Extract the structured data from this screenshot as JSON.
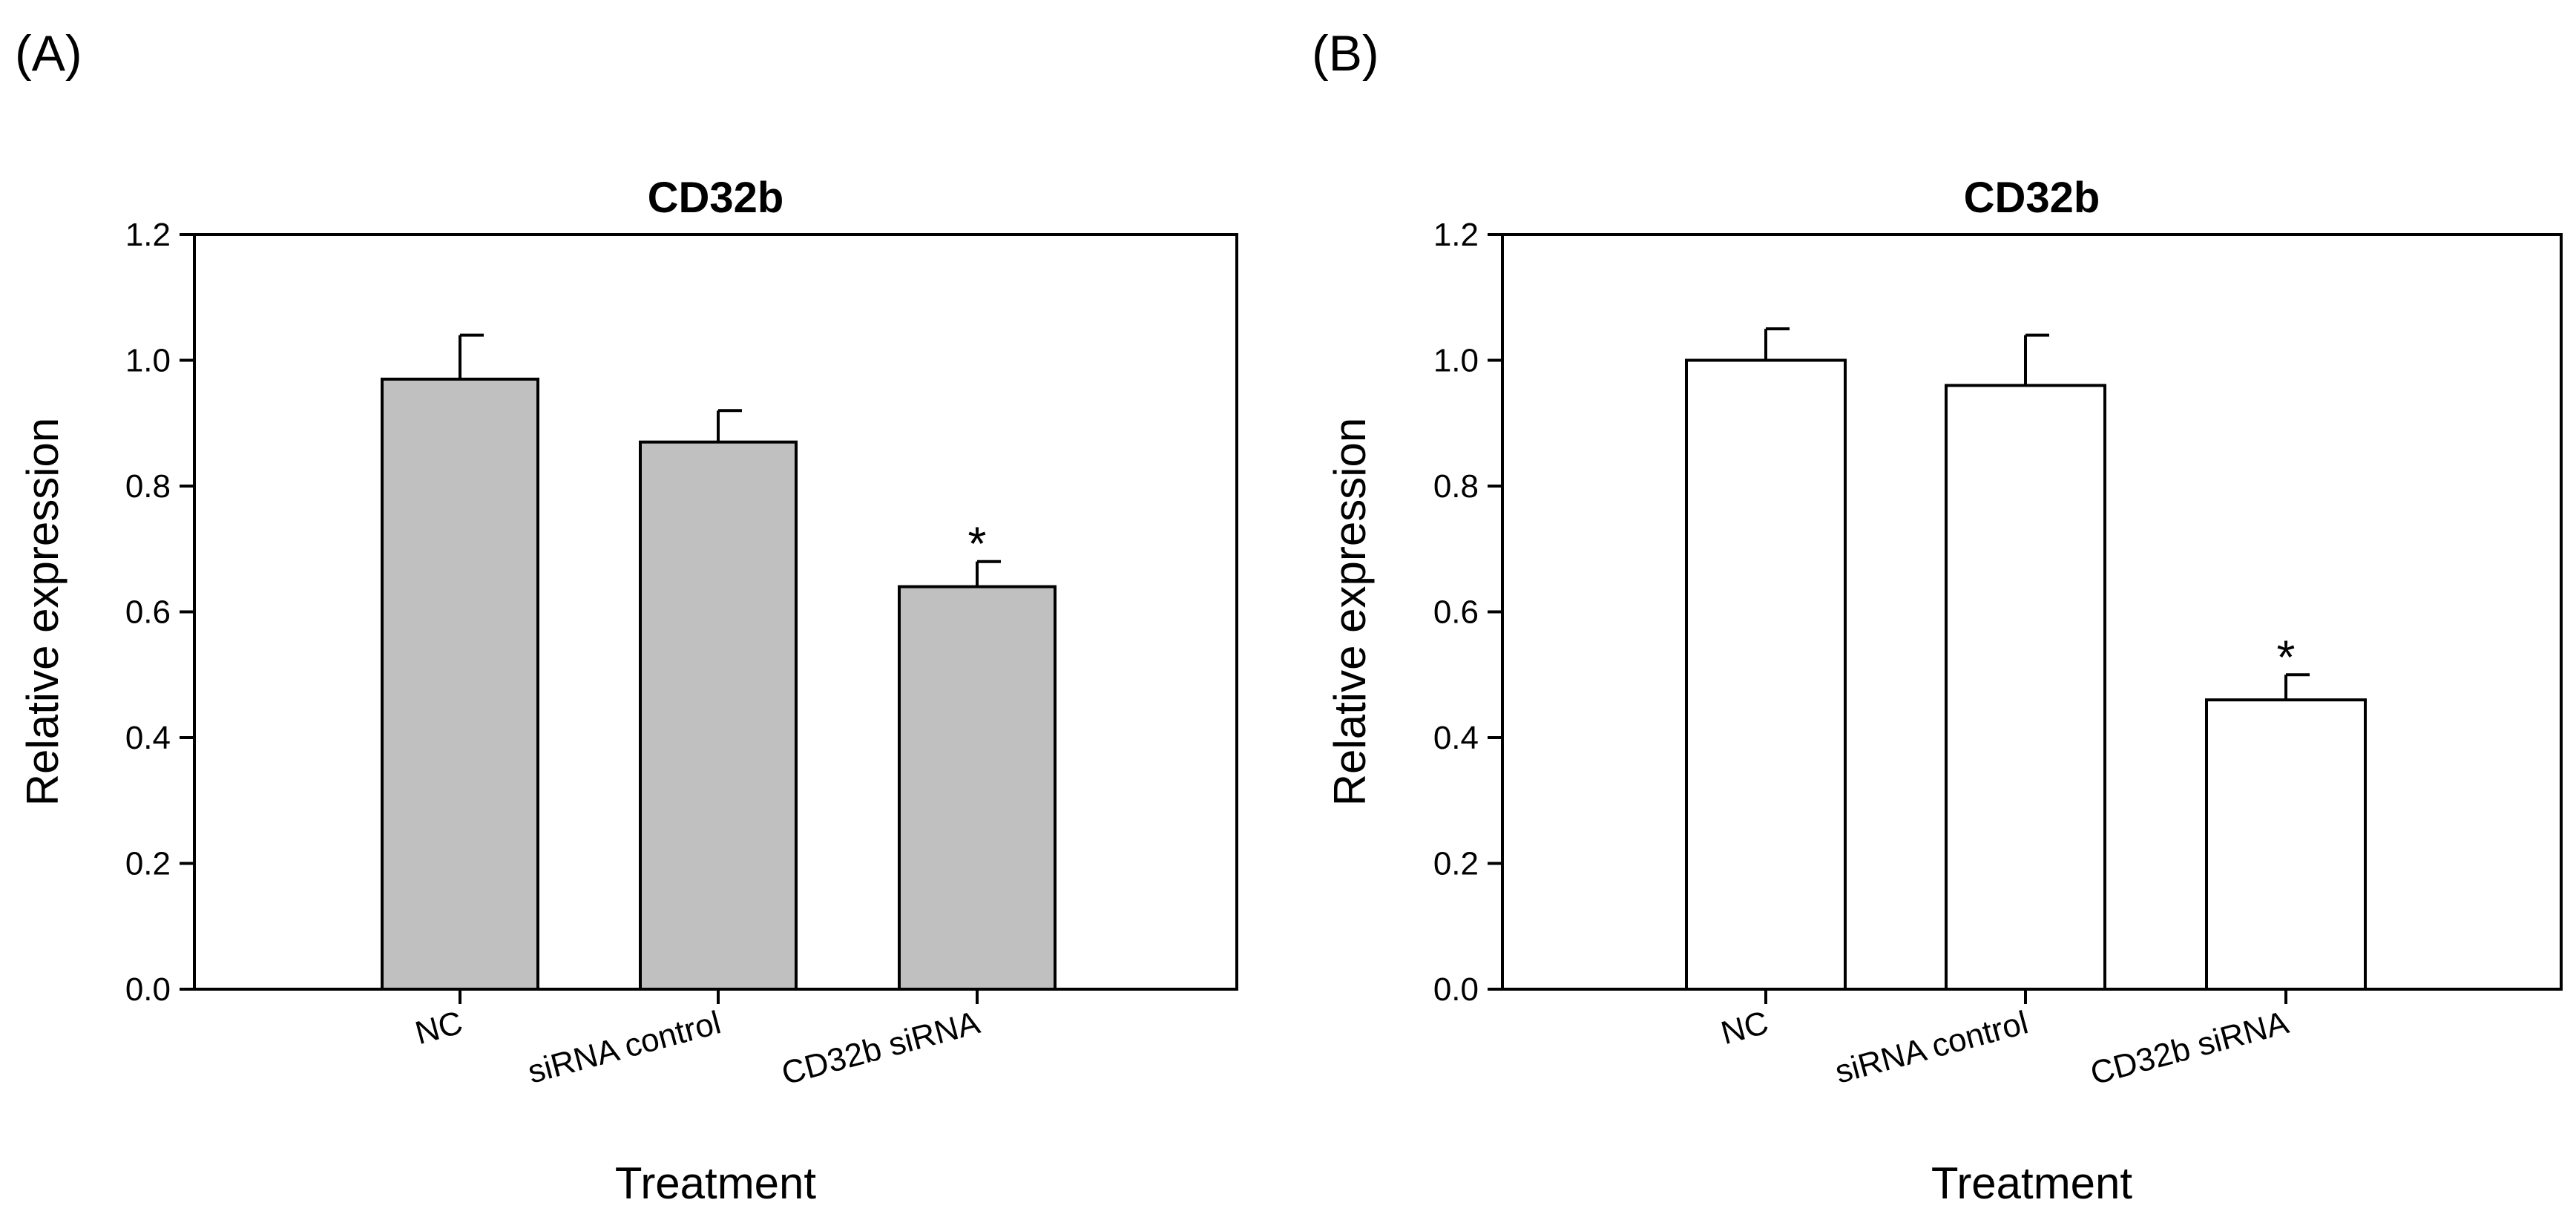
{
  "chart_data": [
    {
      "panel_label": "(A)",
      "type": "bar",
      "title": "CD32b",
      "xlabel": "Treatment",
      "ylabel": "Relative expression",
      "ylim": [
        0,
        1.2
      ],
      "yticks": [
        "0.0",
        "0.2",
        "0.4",
        "0.6",
        "0.8",
        "1.0",
        "1.2"
      ],
      "categories": [
        "NC",
        "siRNA control",
        "CD32b siRNA"
      ],
      "values": [
        0.97,
        0.87,
        0.64
      ],
      "errors": [
        0.07,
        0.05,
        0.04
      ],
      "significance": [
        "",
        "",
        "*"
      ],
      "bar_color": "#c0c0c0"
    },
    {
      "panel_label": "(B)",
      "type": "bar",
      "title": "CD32b",
      "xlabel": "Treatment",
      "ylabel": "Relative expression",
      "ylim": [
        0,
        1.2
      ],
      "yticks": [
        "0.0",
        "0.2",
        "0.4",
        "0.6",
        "0.8",
        "1.0",
        "1.2"
      ],
      "categories": [
        "NC",
        "siRNA control",
        "CD32b siRNA"
      ],
      "values": [
        1.0,
        0.96,
        0.46
      ],
      "errors": [
        0.05,
        0.08,
        0.04
      ],
      "significance": [
        "",
        "",
        "*"
      ],
      "bar_color": "#ffffff"
    }
  ]
}
